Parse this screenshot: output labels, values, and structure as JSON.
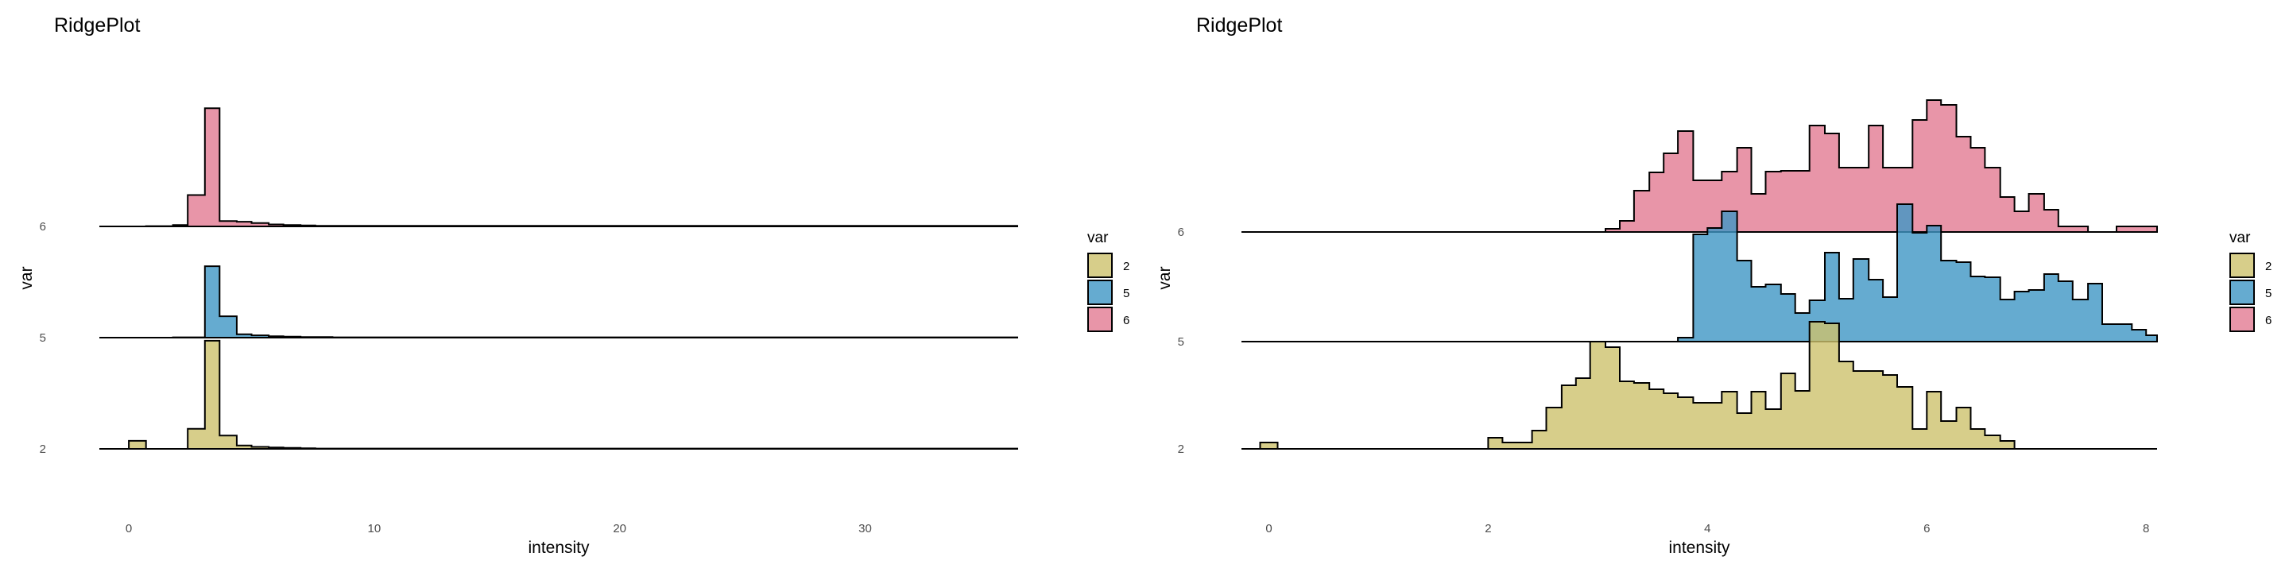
{
  "chart_data": [
    {
      "type": "area",
      "title": "RidgePlot",
      "xlabel": "intensity",
      "ylabel": "var",
      "xlim": [
        -1.2,
        36.2
      ],
      "x_ticks": [
        0,
        10,
        20,
        30
      ],
      "x_tick_labels": [
        "0",
        "10",
        "20",
        "30"
      ],
      "categories": [
        "2",
        "5",
        "6"
      ],
      "legend": {
        "title": "var",
        "position": "right",
        "entries": [
          "2",
          "5",
          "6"
        ]
      },
      "colors": {
        "2": "#CDC26D",
        "5": "#3E96C4",
        "6": "#E27B92"
      },
      "series": [
        {
          "name": "2",
          "x": [
            -1.2,
            0.0,
            0.7,
            1.8,
            2.4,
            3.1,
            3.7,
            4.4,
            5.0,
            5.7,
            6.3,
            7.0,
            7.6,
            36.2
          ],
          "values": [
            0,
            0.12,
            0,
            0,
            0.3,
            1.62,
            0.2,
            0.05,
            0.03,
            0.02,
            0.015,
            0.01,
            0.005,
            0
          ]
        },
        {
          "name": "5",
          "x": [
            -1.2,
            0.7,
            1.8,
            3.1,
            3.7,
            4.4,
            5.0,
            5.7,
            6.3,
            7.0,
            7.6,
            8.3,
            36.2
          ],
          "values": [
            0,
            0,
            0.005,
            1.07,
            0.32,
            0.05,
            0.035,
            0.02,
            0.015,
            0.01,
            0.008,
            0.005,
            0
          ]
        },
        {
          "name": "6",
          "x": [
            -1.2,
            0.7,
            1.8,
            2.4,
            3.1,
            3.7,
            4.4,
            5.0,
            5.7,
            6.3,
            7.0,
            7.6,
            36.2
          ],
          "values": [
            0,
            0.005,
            0.02,
            0.47,
            1.77,
            0.08,
            0.07,
            0.05,
            0.03,
            0.02,
            0.015,
            0.01,
            0
          ]
        }
      ]
    },
    {
      "type": "area",
      "title": "RidgePlot",
      "xlabel": "intensity",
      "ylabel": "var",
      "xlim": [
        -0.25,
        8.1
      ],
      "x_ticks": [
        0,
        2,
        4,
        6,
        8
      ],
      "x_tick_labels": [
        "0",
        "2",
        "4",
        "6",
        "8"
      ],
      "categories": [
        "2",
        "5",
        "6"
      ],
      "legend": {
        "title": "var",
        "position": "right",
        "entries": [
          "2",
          "5",
          "6"
        ]
      },
      "colors": {
        "2": "#CDC26D",
        "5": "#3E96C4",
        "6": "#E27B92"
      },
      "series": [
        {
          "name": "2",
          "x": [
            -0.25,
            -0.08,
            0.08,
            2.0,
            2.13,
            2.27,
            2.4,
            2.53,
            2.67,
            2.8,
            2.93,
            3.07,
            3.2,
            3.33,
            3.47,
            3.6,
            3.73,
            3.87,
            4.0,
            4.13,
            4.27,
            4.4,
            4.53,
            4.67,
            4.8,
            4.93,
            5.07,
            5.2,
            5.33,
            5.47,
            5.6,
            5.73,
            5.87,
            6.0,
            6.13,
            6.27,
            6.4,
            6.53,
            6.67,
            6.8,
            6.93,
            8.1
          ],
          "values": [
            0,
            0.08,
            0,
            0.14,
            0.08,
            0.08,
            0.23,
            0.52,
            0.8,
            0.89,
            1.35,
            1.28,
            0.85,
            0.83,
            0.75,
            0.7,
            0.65,
            0.58,
            0.58,
            0.72,
            0.45,
            0.72,
            0.5,
            0.95,
            0.73,
            1.6,
            1.58,
            1.1,
            0.98,
            0.98,
            0.93,
            0.78,
            0.25,
            0.72,
            0.35,
            0.52,
            0.25,
            0.17,
            0.1,
            0,
            0,
            0
          ]
        },
        {
          "name": "5",
          "x": [
            -0.25,
            3.6,
            3.73,
            3.87,
            4.0,
            4.13,
            4.27,
            4.4,
            4.53,
            4.67,
            4.8,
            4.93,
            5.07,
            5.2,
            5.33,
            5.47,
            5.6,
            5.73,
            5.87,
            6.0,
            6.13,
            6.27,
            6.4,
            6.53,
            6.67,
            6.8,
            6.93,
            7.07,
            7.2,
            7.33,
            7.47,
            7.6,
            7.73,
            7.87,
            8.0,
            8.1
          ],
          "values": [
            0,
            0,
            0.05,
            1.35,
            1.43,
            1.64,
            1.02,
            0.69,
            0.72,
            0.6,
            0.36,
            0.52,
            1.12,
            0.54,
            1.04,
            0.78,
            0.56,
            1.73,
            1.37,
            1.46,
            1.02,
            1.0,
            0.82,
            0.81,
            0.53,
            0.63,
            0.65,
            0.85,
            0.76,
            0.53,
            0.73,
            0.22,
            0.22,
            0.15,
            0.08,
            0
          ]
        },
        {
          "name": "6",
          "x": [
            -0.25,
            2.93,
            3.07,
            3.2,
            3.33,
            3.47,
            3.6,
            3.73,
            3.87,
            4.0,
            4.13,
            4.27,
            4.4,
            4.53,
            4.67,
            4.8,
            4.93,
            5.07,
            5.2,
            5.33,
            5.47,
            5.6,
            5.73,
            5.87,
            6.0,
            6.13,
            6.27,
            6.4,
            6.53,
            6.67,
            6.8,
            6.93,
            7.07,
            7.2,
            7.33,
            7.47,
            7.6,
            7.73,
            8.1
          ],
          "values": [
            0,
            0,
            0.04,
            0.14,
            0.52,
            0.75,
            0.99,
            1.27,
            0.65,
            0.65,
            0.76,
            1.06,
            0.48,
            0.76,
            0.77,
            0.77,
            1.34,
            1.24,
            0.81,
            0.81,
            1.34,
            0.81,
            0.81,
            1.41,
            1.66,
            1.6,
            1.2,
            1.06,
            0.81,
            0.44,
            0.26,
            0.48,
            0.28,
            0.07,
            0.07,
            0,
            0,
            0.07,
            0
          ]
        }
      ]
    }
  ]
}
